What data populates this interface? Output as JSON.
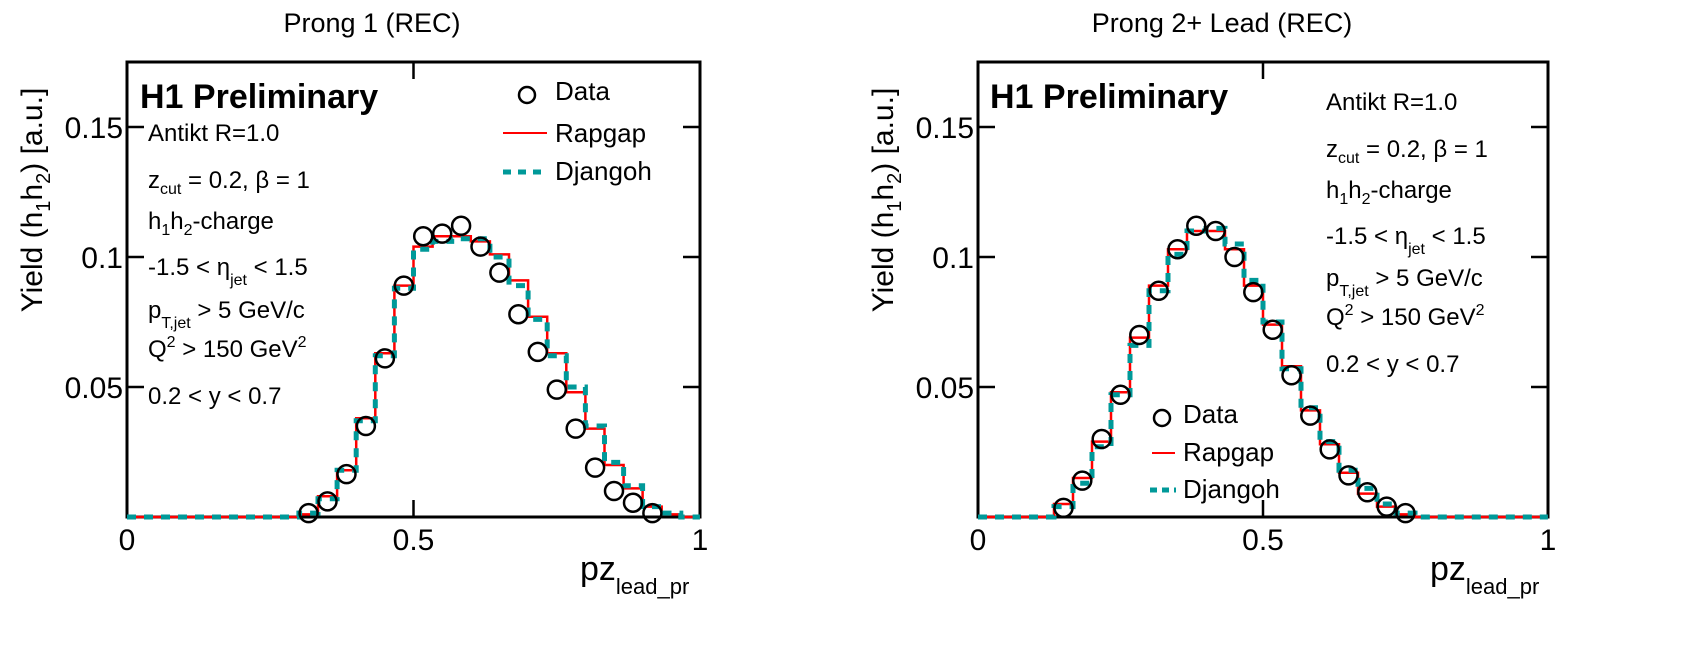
{
  "chart_data": [
    {
      "type": "step-histogram-with-points",
      "title": "Prong 1  (REC)",
      "xlabel": "pz",
      "xlabel_sub": "lead_pr",
      "ylabel_main": "Yield (h",
      "ylabel_sub1": "1",
      "ylabel_mid": "h",
      "ylabel_sub2": "2",
      "ylabel_end": ")  [a.u.]",
      "xlim": [
        0,
        1
      ],
      "ylim": [
        0,
        0.175
      ],
      "xticks": [
        {
          "value": 0,
          "label": "0"
        },
        {
          "value": 0.5,
          "label": "0.5"
        },
        {
          "value": 1,
          "label": "1"
        }
      ],
      "yticks": [
        {
          "value": 0.05,
          "label": "0.05"
        },
        {
          "value": 0.1,
          "label": "0.1"
        },
        {
          "value": 0.15,
          "label": "0.15"
        }
      ],
      "watermark": "H1 Preliminary",
      "annotations": {
        "line1": "Antikt R=1.0",
        "line2_main": "z",
        "line2_sub": "cut",
        "line2_end": " = 0.2, β = 1",
        "line3_a": "h",
        "line3_sub1": "1",
        "line3_b": "h",
        "line3_sub2": "2",
        "line3_end": "-charge",
        "line4_main": "-1.5 < η",
        "line4_sub": "jet",
        "line4_end": " < 1.5",
        "line5_main": "p",
        "line5_sub": "T,jet",
        "line5_end": " > 5 GeV/c",
        "line6_main": "Q",
        "line6_sup": "2",
        "line6_end": " >  150 GeV",
        "line6_sup2": "2",
        "line7": "0.2 < y < 0.7"
      },
      "legend": {
        "position": "top-right",
        "entries": [
          "Data",
          "Rapgap",
          "Djangoh"
        ]
      },
      "bin_edges_start": 0,
      "bin_width": 0.03333,
      "series": [
        {
          "name": "Data",
          "style": "open-circle",
          "color": "#000000",
          "x": [
            0.317,
            0.35,
            0.383,
            0.417,
            0.45,
            0.483,
            0.517,
            0.55,
            0.583,
            0.617,
            0.65,
            0.683,
            0.717,
            0.75,
            0.783,
            0.817,
            0.85,
            0.883,
            0.917
          ],
          "y": [
            0.0015,
            0.006,
            0.0165,
            0.035,
            0.061,
            0.089,
            0.108,
            0.109,
            0.112,
            0.104,
            0.094,
            0.078,
            0.0635,
            0.049,
            0.034,
            0.019,
            0.01,
            0.0055,
            0.0015
          ]
        },
        {
          "name": "Rapgap",
          "style": "solid-step",
          "color": "#ff0000",
          "values": [
            0,
            0,
            0,
            0,
            0,
            0,
            0,
            0,
            0,
            0.001,
            0.008,
            0.018,
            0.038,
            0.063,
            0.089,
            0.104,
            0.108,
            0.108,
            0.106,
            0.101,
            0.091,
            0.077,
            0.063,
            0.048,
            0.034,
            0.02,
            0.011,
            0.004,
            0.001,
            0
          ]
        },
        {
          "name": "Djangoh",
          "style": "dashed-step",
          "color": "#009999",
          "values": [
            0,
            0,
            0,
            0,
            0,
            0,
            0,
            0,
            0,
            0.0015,
            0.007,
            0.018,
            0.037,
            0.062,
            0.088,
            0.103,
            0.106,
            0.107,
            0.107,
            0.1,
            0.089,
            0.076,
            0.062,
            0.05,
            0.035,
            0.021,
            0.012,
            0.004,
            0.0015,
            0
          ]
        }
      ]
    },
    {
      "type": "step-histogram-with-points",
      "title": "Prong 2+ Lead (REC)",
      "xlabel": "pz",
      "xlabel_sub": "lead_pr",
      "ylabel_main": "Yield (h",
      "ylabel_sub1": "1",
      "ylabel_mid": "h",
      "ylabel_sub2": "2",
      "ylabel_end": ")  [a.u.]",
      "xlim": [
        0,
        1
      ],
      "ylim": [
        0,
        0.175
      ],
      "xticks": [
        {
          "value": 0,
          "label": "0"
        },
        {
          "value": 0.5,
          "label": "0.5"
        },
        {
          "value": 1,
          "label": "1"
        }
      ],
      "yticks": [
        {
          "value": 0.05,
          "label": "0.05"
        },
        {
          "value": 0.1,
          "label": "0.1"
        },
        {
          "value": 0.15,
          "label": "0.15"
        }
      ],
      "watermark": "H1 Preliminary",
      "annotations": {
        "line1": "Antikt R=1.0",
        "line2_main": "z",
        "line2_sub": "cut",
        "line2_end": " = 0.2, β = 1",
        "line3_a": "h",
        "line3_sub1": "1",
        "line3_b": "h",
        "line3_sub2": "2",
        "line3_end": "-charge",
        "line4_main": "-1.5 < η",
        "line4_sub": "jet",
        "line4_end": " < 1.5",
        "line5_main": "p",
        "line5_sub": "T,jet",
        "line5_end": " > 5 GeV/c",
        "line6_main": "Q",
        "line6_sup": "2",
        "line6_end": " >  150 GeV",
        "line6_sup2": "2",
        "line7": "0.2 < y < 0.7"
      },
      "legend": {
        "position": "bottom-center",
        "entries": [
          "Data",
          "Rapgap",
          "Djangoh"
        ]
      },
      "bin_edges_start": 0,
      "bin_width": 0.03333,
      "series": [
        {
          "name": "Data",
          "style": "open-circle",
          "color": "#000000",
          "x": [
            0.15,
            0.183,
            0.217,
            0.25,
            0.283,
            0.317,
            0.35,
            0.383,
            0.417,
            0.45,
            0.483,
            0.517,
            0.55,
            0.583,
            0.617,
            0.65,
            0.683,
            0.717,
            0.75
          ],
          "y": [
            0.0035,
            0.014,
            0.03,
            0.047,
            0.07,
            0.087,
            0.103,
            0.112,
            0.11,
            0.1,
            0.0865,
            0.072,
            0.0545,
            0.039,
            0.026,
            0.016,
            0.0095,
            0.004,
            0.0015
          ]
        },
        {
          "name": "Rapgap",
          "style": "solid-step",
          "color": "#ff0000",
          "values": [
            0,
            0,
            0,
            0,
            0.005,
            0.015,
            0.029,
            0.048,
            0.069,
            0.089,
            0.103,
            0.11,
            0.11,
            0.103,
            0.089,
            0.074,
            0.058,
            0.041,
            0.028,
            0.017,
            0.009,
            0.004,
            0.001,
            0,
            0,
            0,
            0,
            0,
            0,
            0
          ]
        },
        {
          "name": "Djangoh",
          "style": "dashed-step",
          "color": "#009999",
          "values": [
            0,
            0,
            0,
            0,
            0.004,
            0.013,
            0.027,
            0.047,
            0.066,
            0.087,
            0.101,
            0.11,
            0.111,
            0.105,
            0.091,
            0.075,
            0.057,
            0.042,
            0.029,
            0.018,
            0.011,
            0.005,
            0.0015,
            0,
            0,
            0,
            0,
            0,
            0,
            0
          ]
        }
      ]
    }
  ]
}
